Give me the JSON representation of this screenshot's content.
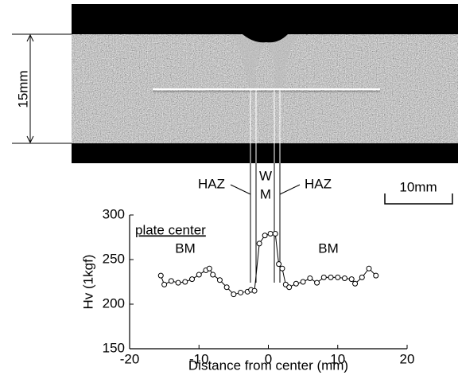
{
  "figure": {
    "thickness_label": "15mm",
    "zone_labels": [
      "HAZ",
      "W",
      "M",
      "HAZ"
    ],
    "scale_bar": "10mm"
  },
  "chart_data": {
    "type": "line",
    "xlabel": "Distance from center (mm)",
    "ylabel": "Hv (1kgf)",
    "annotations": [
      "plate center",
      "BM",
      "BM"
    ],
    "x": [
      -15.5,
      -15,
      -14,
      -13,
      -12,
      -11,
      -10,
      -9,
      -8.5,
      -8,
      -7,
      -6,
      -5,
      -4,
      -3,
      -2.5,
      -2,
      -1.3,
      -0.5,
      0.3,
      1,
      1.5,
      2,
      2.5,
      3,
      4,
      5,
      6,
      7,
      8,
      9,
      10,
      11,
      12,
      12.5,
      13.5,
      14.5,
      15.5
    ],
    "series": [
      {
        "color": "#000000",
        "values": [
          232,
          222,
          226,
          224,
          225,
          228,
          233,
          238,
          240,
          233,
          227,
          219,
          211,
          213,
          214,
          216,
          215,
          268,
          277,
          279,
          279,
          245,
          240,
          222,
          219,
          223,
          225,
          229,
          224,
          230,
          230,
          230,
          229,
          228,
          223,
          230,
          240,
          232
        ]
      }
    ],
    "xlim": [
      -20,
      20
    ],
    "ylim": [
      150,
      300
    ],
    "xticks": [
      -20,
      -10,
      0,
      10,
      20
    ],
    "yticks": [
      150,
      200,
      250,
      300
    ]
  }
}
